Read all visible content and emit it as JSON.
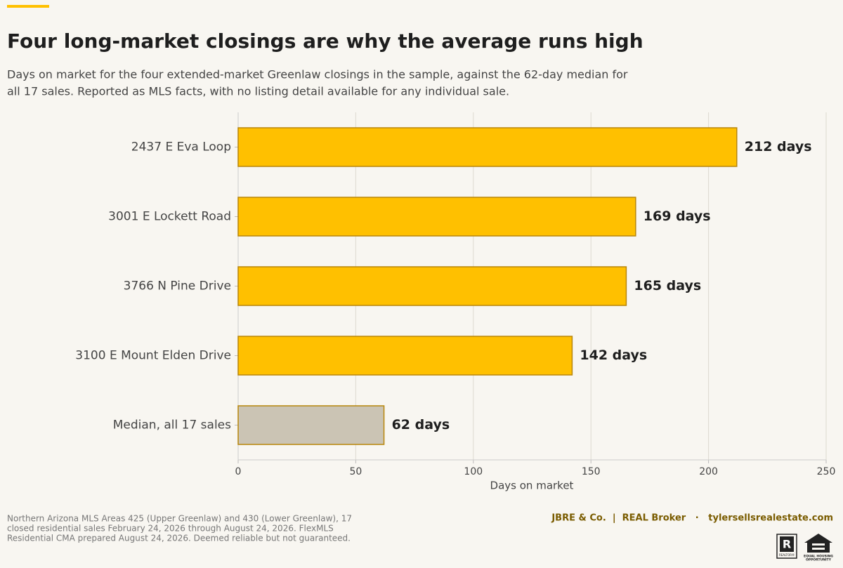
{
  "chart_data": {
    "type": "barh",
    "title": "Four long-market closings are why the average runs high",
    "subtitle": [
      "Days on market for the four extended-market Greenlaw closings in the sample, against the 62-day median for",
      "all 17 sales. Reported as MLS facts, with no listing detail available for any individual sale."
    ],
    "categories": [
      "2437 E Eva Loop",
      "3001 E Lockett Road",
      "3766 N Pine Drive",
      "3100 E Mount Elden Drive",
      "Median, all 17 sales"
    ],
    "values": [
      212,
      169,
      165,
      142,
      62
    ],
    "value_labels": [
      "212 days",
      "169 days",
      "165 days",
      "142 days",
      "62 days"
    ],
    "colors": [
      "#ffc000",
      "#ffc000",
      "#ffc000",
      "#ffc000",
      "#cbc4b4"
    ],
    "edgecolor": "#b8860b",
    "xlabel": "Days on market",
    "xlim": [
      0,
      250
    ],
    "xticks": [
      0,
      50,
      100,
      150,
      200,
      250
    ],
    "grid": true
  },
  "footer": {
    "source": [
      "Northern Arizona MLS Areas 425 (Upper Greenlaw) and 430 (Lower Greenlaw), 17",
      "closed residential sales February 24, 2026 through August 24, 2026. FlexMLS",
      "Residential CMA prepared August 24, 2026. Deemed reliable but not guaranteed."
    ],
    "brand": "JBRE & Co.  |  REAL Broker   ·   tylersellsrealestate.com",
    "realtor_logo": "R",
    "realtor_text": "REALTOR®",
    "eho_text": [
      "EQUAL HOUSING",
      "OPPORTUNITY"
    ]
  }
}
